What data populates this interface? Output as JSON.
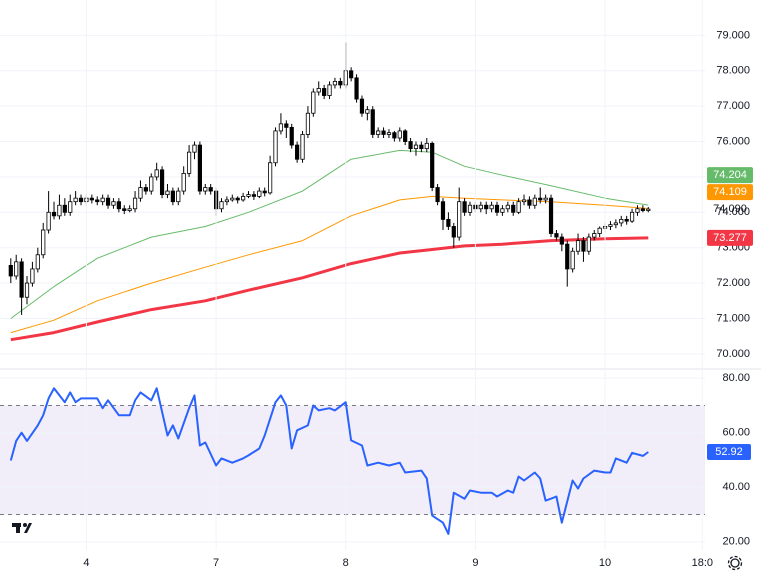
{
  "chart_data": [
    {
      "type": "candlestick",
      "xlim": [
        -2,
        128.5
      ],
      "ylim": [
        69.6,
        80.0
      ],
      "up_color": "#ffffff",
      "down_color": "#000000",
      "edge_color": "#000000",
      "grid": true,
      "yticks": [
        {
          "value": 70,
          "label": "70.000"
        },
        {
          "value": 71,
          "label": "71.000"
        },
        {
          "value": 72,
          "label": "72.000"
        },
        {
          "value": 73,
          "label": "73.000"
        },
        {
          "value": 74,
          "label": "74.000"
        },
        {
          "value": 75,
          "label": "75.000"
        },
        {
          "value": 76,
          "label": "76.000"
        },
        {
          "value": 77,
          "label": "77.000"
        },
        {
          "value": 78,
          "label": "78.000"
        },
        {
          "value": 79,
          "label": "79.000"
        }
      ],
      "last_label": "74.090",
      "ohlc": [
        [
          72.5,
          72.7,
          72.0,
          72.2
        ],
        [
          72.2,
          72.8,
          72.1,
          72.6
        ],
        [
          72.6,
          72.7,
          71.1,
          71.6
        ],
        [
          71.6,
          72.2,
          71.4,
          72.0
        ],
        [
          72.0,
          72.6,
          71.9,
          72.4
        ],
        [
          72.4,
          73.0,
          72.3,
          72.8
        ],
        [
          72.8,
          73.7,
          72.7,
          73.5
        ],
        [
          73.5,
          74.6,
          73.4,
          74.0
        ],
        [
          74.0,
          74.3,
          73.8,
          73.9
        ],
        [
          73.9,
          74.5,
          73.8,
          74.2
        ],
        [
          74.2,
          74.4,
          73.9,
          74.0
        ],
        [
          74.0,
          74.5,
          73.9,
          74.3
        ],
        [
          74.3,
          74.6,
          74.2,
          74.4
        ],
        [
          74.4,
          74.5,
          74.2,
          74.3
        ],
        [
          74.3,
          74.5,
          74.2,
          74.4
        ],
        [
          74.4,
          74.5,
          74.25,
          74.35
        ],
        [
          74.35,
          74.45,
          74.2,
          74.3
        ],
        [
          74.3,
          74.5,
          74.2,
          74.4
        ],
        [
          74.4,
          74.5,
          74.1,
          74.2
        ],
        [
          74.2,
          74.4,
          74.1,
          74.3
        ],
        [
          74.3,
          74.4,
          74.0,
          74.1
        ],
        [
          74.1,
          74.2,
          73.95,
          74.05
        ],
        [
          74.05,
          74.2,
          74.0,
          74.1
        ],
        [
          74.1,
          74.6,
          74.0,
          74.4
        ],
        [
          74.4,
          74.9,
          74.3,
          74.7
        ],
        [
          74.7,
          74.8,
          74.5,
          74.6
        ],
        [
          74.6,
          75.1,
          74.5,
          75.0
        ],
        [
          75.0,
          75.4,
          74.9,
          75.2
        ],
        [
          75.2,
          75.3,
          74.4,
          74.5
        ],
        [
          74.5,
          74.8,
          74.4,
          74.6
        ],
        [
          74.6,
          74.7,
          74.2,
          74.3
        ],
        [
          74.3,
          74.7,
          74.2,
          74.6
        ],
        [
          74.6,
          75.3,
          74.5,
          75.1
        ],
        [
          75.1,
          75.9,
          75.0,
          75.7
        ],
        [
          75.7,
          76.0,
          75.5,
          75.9
        ],
        [
          75.9,
          76.0,
          74.5,
          74.6
        ],
        [
          74.6,
          74.8,
          74.5,
          74.7
        ],
        [
          74.7,
          74.8,
          74.5,
          74.6
        ],
        [
          74.6,
          74.7,
          73.9,
          74.1
        ],
        [
          74.1,
          74.4,
          74.0,
          74.3
        ],
        [
          74.3,
          74.45,
          74.2,
          74.35
        ],
        [
          74.35,
          74.5,
          74.3,
          74.4
        ],
        [
          74.4,
          74.45,
          74.25,
          74.35
        ],
        [
          74.35,
          74.55,
          74.3,
          74.45
        ],
        [
          74.45,
          74.6,
          74.4,
          74.5
        ],
        [
          74.5,
          74.6,
          74.35,
          74.45
        ],
        [
          74.45,
          74.7,
          74.4,
          74.6
        ],
        [
          74.6,
          74.7,
          74.45,
          74.55
        ],
        [
          74.55,
          75.6,
          74.5,
          75.4
        ],
        [
          75.4,
          76.4,
          75.3,
          76.3
        ],
        [
          76.3,
          76.8,
          76.2,
          76.5
        ],
        [
          76.5,
          76.6,
          76.1,
          76.4
        ],
        [
          76.4,
          76.5,
          75.8,
          75.9
        ],
        [
          75.9,
          76.0,
          75.4,
          75.5
        ],
        [
          75.5,
          76.3,
          75.4,
          76.2
        ],
        [
          76.2,
          77.0,
          76.1,
          76.8
        ],
        [
          76.8,
          77.5,
          76.7,
          77.4
        ],
        [
          77.4,
          77.7,
          77.3,
          77.5
        ],
        [
          77.5,
          77.6,
          77.2,
          77.3
        ],
        [
          77.3,
          77.7,
          77.2,
          77.6
        ],
        [
          77.6,
          77.8,
          77.5,
          77.7
        ],
        [
          77.7,
          77.8,
          77.5,
          77.6
        ],
        [
          77.6,
          78.8,
          77.5,
          78.0
        ],
        [
          78.0,
          78.1,
          77.7,
          77.8
        ],
        [
          77.8,
          77.9,
          77.1,
          77.2
        ],
        [
          77.2,
          77.3,
          76.7,
          76.8
        ],
        [
          76.8,
          77.0,
          76.6,
          76.9
        ],
        [
          76.9,
          77.0,
          76.1,
          76.2
        ],
        [
          76.2,
          76.4,
          76.1,
          76.3
        ],
        [
          76.3,
          76.4,
          76.1,
          76.2
        ],
        [
          76.2,
          76.35,
          76.1,
          76.25
        ],
        [
          76.25,
          76.3,
          76.0,
          76.1
        ],
        [
          76.1,
          76.4,
          76.0,
          76.3
        ],
        [
          76.3,
          76.35,
          75.9,
          76.0
        ],
        [
          76.0,
          76.1,
          75.7,
          75.8
        ],
        [
          75.8,
          76.0,
          75.6,
          75.9
        ],
        [
          75.9,
          76.0,
          75.7,
          75.8
        ],
        [
          75.8,
          76.1,
          75.7,
          75.95
        ],
        [
          75.95,
          76.0,
          74.6,
          74.7
        ],
        [
          74.7,
          74.8,
          74.2,
          74.3
        ],
        [
          74.3,
          74.4,
          73.5,
          73.8
        ],
        [
          73.8,
          74.0,
          73.5,
          73.6
        ],
        [
          73.6,
          73.7,
          73.0,
          73.3
        ],
        [
          73.3,
          74.7,
          73.2,
          74.3
        ],
        [
          74.3,
          74.4,
          73.9,
          74.0
        ],
        [
          74.0,
          74.3,
          73.9,
          74.2
        ],
        [
          74.2,
          74.3,
          74.0,
          74.1
        ],
        [
          74.1,
          74.3,
          74.0,
          74.2
        ],
        [
          74.2,
          74.3,
          73.95,
          74.1
        ],
        [
          74.1,
          74.3,
          74.0,
          74.2
        ],
        [
          74.2,
          74.3,
          73.9,
          74.0
        ],
        [
          74.0,
          74.2,
          73.9,
          74.1
        ],
        [
          74.1,
          74.3,
          74.0,
          74.2
        ],
        [
          74.2,
          74.3,
          73.9,
          74.0
        ],
        [
          74.0,
          74.4,
          73.95,
          74.3
        ],
        [
          74.3,
          74.5,
          74.2,
          74.35
        ],
        [
          74.35,
          74.45,
          74.1,
          74.2
        ],
        [
          74.2,
          74.5,
          74.1,
          74.4
        ],
        [
          74.4,
          74.7,
          74.25,
          74.35
        ],
        [
          74.35,
          74.5,
          74.25,
          74.4
        ],
        [
          74.4,
          74.5,
          73.3,
          73.4
        ],
        [
          73.4,
          73.5,
          73.2,
          73.3
        ],
        [
          73.3,
          73.4,
          72.9,
          73.1
        ],
        [
          73.1,
          73.2,
          71.9,
          72.4
        ],
        [
          72.4,
          73.0,
          72.3,
          72.9
        ],
        [
          72.9,
          73.4,
          72.8,
          73.2
        ],
        [
          73.2,
          73.3,
          72.6,
          72.9
        ],
        [
          72.9,
          73.4,
          72.8,
          73.3
        ],
        [
          73.3,
          73.5,
          73.2,
          73.4
        ],
        [
          73.4,
          73.6,
          73.3,
          73.55
        ],
        [
          73.55,
          73.7,
          73.45,
          73.6
        ],
        [
          73.6,
          73.75,
          73.5,
          73.65
        ],
        [
          73.65,
          73.8,
          73.55,
          73.7
        ],
        [
          73.7,
          73.9,
          73.6,
          73.8
        ],
        [
          73.8,
          73.9,
          73.65,
          73.75
        ],
        [
          73.75,
          74.1,
          73.7,
          74.0
        ],
        [
          74.0,
          74.2,
          73.9,
          74.1
        ],
        [
          74.1,
          74.2,
          74.0,
          74.05
        ],
        [
          74.05,
          74.15,
          74.0,
          74.09
        ]
      ],
      "series": [
        {
          "color": "#66bb6a",
          "width": 1,
          "x": [
            0,
            8,
            16,
            26,
            36,
            44,
            54,
            63,
            72,
            78,
            84,
            91,
            100,
            110,
            118
          ],
          "values": [
            71.0,
            71.9,
            72.7,
            73.3,
            73.6,
            74.0,
            74.6,
            75.5,
            75.75,
            75.7,
            75.3,
            75.05,
            74.75,
            74.4,
            74.204
          ]
        },
        {
          "color": "#ff9800",
          "width": 1,
          "x": [
            0,
            8,
            16,
            26,
            36,
            44,
            54,
            63,
            72,
            78,
            84,
            91,
            100,
            110,
            118
          ],
          "values": [
            70.6,
            70.95,
            71.5,
            72.0,
            72.45,
            72.8,
            73.2,
            73.9,
            74.35,
            74.45,
            74.4,
            74.35,
            74.3,
            74.2,
            74.109
          ]
        },
        {
          "color": "#f23645",
          "width": 3,
          "x": [
            0,
            8,
            16,
            26,
            36,
            44,
            54,
            63,
            72,
            78,
            84,
            91,
            100,
            110,
            118
          ],
          "values": [
            70.4,
            70.6,
            70.9,
            71.25,
            71.5,
            71.8,
            72.15,
            72.55,
            72.85,
            72.95,
            73.05,
            73.1,
            73.2,
            73.25,
            73.277
          ]
        }
      ]
    },
    {
      "type": "line",
      "xlim": [
        -2,
        128.5
      ],
      "ylim": [
        17,
        83
      ],
      "band": [
        30,
        70
      ],
      "band_color": "#7e57c2",
      "grid": true,
      "yticks": [
        {
          "value": 20,
          "label": "20.00"
        },
        {
          "value": 40,
          "label": "40.00"
        },
        {
          "value": 60,
          "label": "60.00"
        },
        {
          "value": 80,
          "label": "80.00"
        }
      ],
      "xticks": [
        {
          "value": 14,
          "label": "4"
        },
        {
          "value": 38,
          "label": "7"
        },
        {
          "value": 62,
          "label": "8"
        },
        {
          "value": 86,
          "label": "9"
        },
        {
          "value": 110,
          "label": "10"
        },
        {
          "value": 128,
          "label": "18:0"
        }
      ],
      "series": [
        {
          "color": "#2962ff",
          "width": 2,
          "x": [
            0,
            1,
            2,
            3,
            5,
            6,
            7,
            8,
            10,
            11,
            12,
            13,
            16,
            17,
            18,
            20,
            22,
            23,
            24,
            26,
            27,
            29,
            30,
            31,
            33,
            34,
            35,
            36,
            38,
            39,
            41,
            43,
            44,
            46,
            47,
            49,
            50,
            51,
            52,
            53,
            55,
            56,
            57,
            59,
            60,
            62,
            63,
            65,
            66,
            68,
            70,
            72,
            73,
            76,
            77,
            78,
            80,
            81,
            82,
            84,
            85,
            87,
            89,
            90,
            92,
            93,
            94,
            95,
            97,
            98,
            99,
            100,
            101,
            102,
            104,
            105,
            106,
            108,
            110,
            111,
            112,
            114,
            115,
            117,
            118
          ],
          "values": [
            49.8,
            57,
            60,
            57,
            62.7,
            66.4,
            72.6,
            76.3,
            71.2,
            74.8,
            71.2,
            72.6,
            72.6,
            69,
            71.9,
            66.4,
            66.4,
            71.9,
            74.8,
            71.9,
            76.3,
            59,
            62.7,
            57.9,
            69,
            73.7,
            55.3,
            56.4,
            48,
            50.6,
            49,
            50.6,
            51.7,
            54.2,
            59,
            71.2,
            73.7,
            70,
            54.2,
            60.9,
            62.7,
            70,
            68.2,
            69,
            68.2,
            71.2,
            57.2,
            55.3,
            48,
            49,
            48,
            49,
            45.4,
            46.1,
            43.2,
            29.6,
            27,
            22.9,
            38,
            35.8,
            38.8,
            38,
            38,
            36.6,
            38.8,
            38,
            43.9,
            42.5,
            45.4,
            43.2,
            35.1,
            35.8,
            36.6,
            27,
            42.5,
            39.5,
            43.2,
            46.1,
            45.4,
            45.4,
            50.6,
            49,
            52.6,
            51.5,
            52.92
          ]
        }
      ]
    }
  ]
}
